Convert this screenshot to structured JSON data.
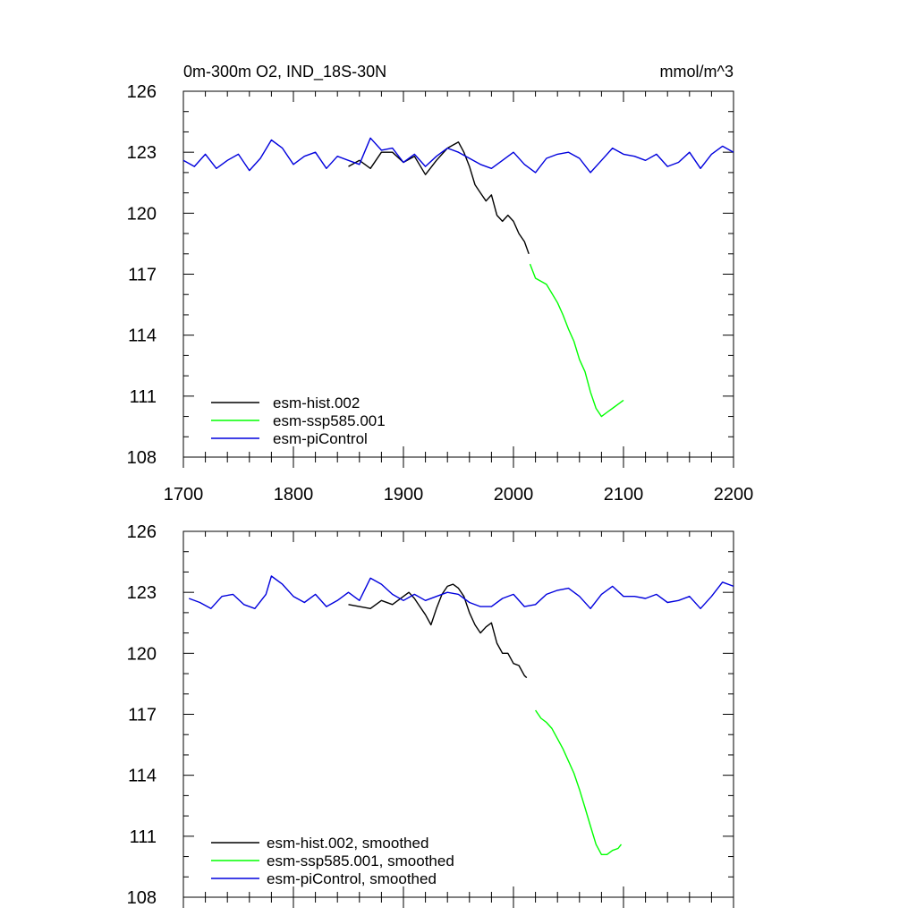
{
  "chart_data": [
    {
      "type": "line",
      "title": "0m-300m O2, IND_18S-30N",
      "units": "mmol/m^3",
      "xlim": [
        1700,
        2200
      ],
      "ylim": [
        108,
        126
      ],
      "x_ticks": [
        1700,
        1800,
        1900,
        2000,
        2100,
        2200
      ],
      "x_tick_labels": [
        "1700",
        "1800",
        "1900",
        "2000",
        "2100",
        "2200"
      ],
      "y_ticks": [
        108,
        111,
        114,
        117,
        120,
        123,
        126
      ],
      "y_tick_labels": [
        "108",
        "111",
        "114",
        "117",
        "120",
        "123",
        "126"
      ],
      "legend_position": "bottom-left",
      "series": [
        {
          "name": "esm-hist.002",
          "color": "#000000",
          "points": [
            [
              1850,
              122.3
            ],
            [
              1860,
              122.6
            ],
            [
              1870,
              122.2
            ],
            [
              1880,
              123.0
            ],
            [
              1890,
              123.0
            ],
            [
              1900,
              122.5
            ],
            [
              1910,
              122.8
            ],
            [
              1920,
              121.9
            ],
            [
              1930,
              122.6
            ],
            [
              1940,
              123.2
            ],
            [
              1950,
              123.5
            ],
            [
              1955,
              123.0
            ],
            [
              1960,
              122.3
            ],
            [
              1965,
              121.4
            ],
            [
              1970,
              121.0
            ],
            [
              1975,
              120.6
            ],
            [
              1980,
              120.9
            ],
            [
              1985,
              119.9
            ],
            [
              1990,
              119.6
            ],
            [
              1995,
              119.9
            ],
            [
              2000,
              119.6
            ],
            [
              2005,
              119.0
            ],
            [
              2010,
              118.6
            ],
            [
              2014,
              118.0
            ]
          ]
        },
        {
          "name": "esm-ssp585.001",
          "color": "#00ff00",
          "points": [
            [
              2015,
              117.5
            ],
            [
              2020,
              116.8
            ],
            [
              2030,
              116.5
            ],
            [
              2040,
              115.6
            ],
            [
              2045,
              115.0
            ],
            [
              2050,
              114.3
            ],
            [
              2055,
              113.7
            ],
            [
              2060,
              112.8
            ],
            [
              2065,
              112.2
            ],
            [
              2070,
              111.2
            ],
            [
              2075,
              110.4
            ],
            [
              2080,
              110.0
            ],
            [
              2085,
              110.2
            ],
            [
              2090,
              110.4
            ],
            [
              2095,
              110.6
            ],
            [
              2100,
              110.8
            ]
          ]
        },
        {
          "name": "esm-piControl",
          "color": "#0000dd",
          "points": [
            [
              1700,
              122.6
            ],
            [
              1710,
              122.3
            ],
            [
              1720,
              122.9
            ],
            [
              1730,
              122.2
            ],
            [
              1740,
              122.6
            ],
            [
              1750,
              122.9
            ],
            [
              1760,
              122.1
            ],
            [
              1770,
              122.7
            ],
            [
              1780,
              123.6
            ],
            [
              1790,
              123.2
            ],
            [
              1800,
              122.4
            ],
            [
              1810,
              122.8
            ],
            [
              1820,
              123.0
            ],
            [
              1830,
              122.2
            ],
            [
              1840,
              122.8
            ],
            [
              1850,
              122.6
            ],
            [
              1860,
              122.4
            ],
            [
              1870,
              123.7
            ],
            [
              1880,
              123.1
            ],
            [
              1890,
              123.2
            ],
            [
              1900,
              122.5
            ],
            [
              1910,
              122.9
            ],
            [
              1920,
              122.3
            ],
            [
              1930,
              122.8
            ],
            [
              1940,
              123.2
            ],
            [
              1950,
              123.0
            ],
            [
              1960,
              122.7
            ],
            [
              1970,
              122.4
            ],
            [
              1980,
              122.2
            ],
            [
              1990,
              122.6
            ],
            [
              2000,
              123.0
            ],
            [
              2010,
              122.4
            ],
            [
              2020,
              122.0
            ],
            [
              2030,
              122.7
            ],
            [
              2040,
              122.9
            ],
            [
              2050,
              123.0
            ],
            [
              2060,
              122.7
            ],
            [
              2070,
              122.0
            ],
            [
              2080,
              122.6
            ],
            [
              2090,
              123.2
            ],
            [
              2100,
              122.9
            ],
            [
              2110,
              122.8
            ],
            [
              2120,
              122.6
            ],
            [
              2130,
              122.9
            ],
            [
              2140,
              122.3
            ],
            [
              2150,
              122.5
            ],
            [
              2160,
              123.0
            ],
            [
              2170,
              122.2
            ],
            [
              2180,
              122.9
            ],
            [
              2190,
              123.3
            ],
            [
              2200,
              123.0
            ]
          ]
        }
      ]
    },
    {
      "type": "line",
      "xlim": [
        1700,
        2200
      ],
      "ylim": [
        108,
        126
      ],
      "x_ticks": [
        1700,
        1800,
        1900,
        2000,
        2100,
        2200
      ],
      "y_ticks": [
        108,
        111,
        114,
        117,
        120,
        123,
        126
      ],
      "y_tick_labels": [
        "108",
        "111",
        "114",
        "117",
        "120",
        "123",
        "126"
      ],
      "legend_position": "bottom-left",
      "series": [
        {
          "name": "esm-hist.002, smoothed",
          "color": "#000000",
          "points": [
            [
              1850,
              122.4
            ],
            [
              1860,
              122.3
            ],
            [
              1870,
              122.2
            ],
            [
              1880,
              122.6
            ],
            [
              1890,
              122.4
            ],
            [
              1900,
              122.8
            ],
            [
              1905,
              123.0
            ],
            [
              1910,
              122.7
            ],
            [
              1915,
              122.3
            ],
            [
              1920,
              121.9
            ],
            [
              1925,
              121.4
            ],
            [
              1930,
              122.2
            ],
            [
              1935,
              122.9
            ],
            [
              1940,
              123.3
            ],
            [
              1945,
              123.4
            ],
            [
              1950,
              123.2
            ],
            [
              1955,
              122.8
            ],
            [
              1960,
              122.0
            ],
            [
              1965,
              121.4
            ],
            [
              1970,
              121.0
            ],
            [
              1975,
              121.3
            ],
            [
              1980,
              121.5
            ],
            [
              1985,
              120.5
            ],
            [
              1990,
              120.0
            ],
            [
              1995,
              120.0
            ],
            [
              2000,
              119.5
            ],
            [
              2005,
              119.4
            ],
            [
              2010,
              118.9
            ],
            [
              2012,
              118.8
            ]
          ]
        },
        {
          "name": "esm-ssp585.001, smoothed",
          "color": "#00ff00",
          "points": [
            [
              2020,
              117.2
            ],
            [
              2025,
              116.8
            ],
            [
              2030,
              116.6
            ],
            [
              2035,
              116.3
            ],
            [
              2040,
              115.8
            ],
            [
              2045,
              115.3
            ],
            [
              2050,
              114.7
            ],
            [
              2055,
              114.1
            ],
            [
              2060,
              113.3
            ],
            [
              2065,
              112.4
            ],
            [
              2070,
              111.5
            ],
            [
              2075,
              110.6
            ],
            [
              2080,
              110.1
            ],
            [
              2085,
              110.1
            ],
            [
              2090,
              110.3
            ],
            [
              2095,
              110.4
            ],
            [
              2098,
              110.6
            ]
          ]
        },
        {
          "name": "esm-piControl, smoothed",
          "color": "#0000dd",
          "points": [
            [
              1705,
              122.7
            ],
            [
              1715,
              122.5
            ],
            [
              1725,
              122.2
            ],
            [
              1735,
              122.8
            ],
            [
              1745,
              122.9
            ],
            [
              1755,
              122.4
            ],
            [
              1765,
              122.2
            ],
            [
              1775,
              122.9
            ],
            [
              1780,
              123.8
            ],
            [
              1790,
              123.4
            ],
            [
              1800,
              122.8
            ],
            [
              1810,
              122.5
            ],
            [
              1820,
              122.9
            ],
            [
              1830,
              122.3
            ],
            [
              1840,
              122.6
            ],
            [
              1850,
              123.0
            ],
            [
              1860,
              122.6
            ],
            [
              1870,
              123.7
            ],
            [
              1880,
              123.4
            ],
            [
              1890,
              122.9
            ],
            [
              1900,
              122.6
            ],
            [
              1910,
              122.9
            ],
            [
              1920,
              122.6
            ],
            [
              1930,
              122.8
            ],
            [
              1940,
              123.0
            ],
            [
              1950,
              122.9
            ],
            [
              1960,
              122.5
            ],
            [
              1970,
              122.3
            ],
            [
              1980,
              122.3
            ],
            [
              1990,
              122.7
            ],
            [
              2000,
              122.9
            ],
            [
              2010,
              122.3
            ],
            [
              2020,
              122.4
            ],
            [
              2030,
              122.9
            ],
            [
              2040,
              123.1
            ],
            [
              2050,
              123.2
            ],
            [
              2060,
              122.8
            ],
            [
              2070,
              122.2
            ],
            [
              2080,
              122.9
            ],
            [
              2090,
              123.3
            ],
            [
              2100,
              122.8
            ],
            [
              2110,
              122.8
            ],
            [
              2120,
              122.7
            ],
            [
              2130,
              122.9
            ],
            [
              2140,
              122.5
            ],
            [
              2150,
              122.6
            ],
            [
              2160,
              122.8
            ],
            [
              2170,
              122.2
            ],
            [
              2180,
              122.8
            ],
            [
              2190,
              123.5
            ],
            [
              2200,
              123.3
            ]
          ]
        }
      ]
    }
  ]
}
